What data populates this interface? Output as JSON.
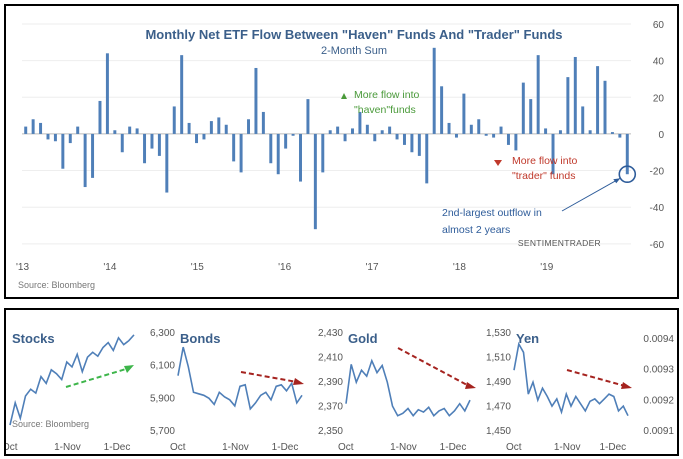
{
  "chart_data": [
    {
      "type": "bar",
      "title": "Monthly Net ETF Flow Between \"Haven\" Funds And \"Trader\" Funds",
      "subtitle": "2-Month Sum",
      "ylim": [
        -65,
        60
      ],
      "yticks": [
        60,
        40,
        20,
        0,
        -20,
        -40,
        -60
      ],
      "xticks": [
        "'13",
        "'14",
        "'15",
        "'16",
        "'17",
        "'18",
        "'19"
      ],
      "x_start": 2013.0,
      "x_end": 2019.97,
      "color": "#4f7fb8",
      "values": [
        4,
        8,
        6,
        -3,
        -4,
        -19,
        -5,
        4,
        -29,
        -24,
        18,
        44,
        2,
        -10,
        4,
        3,
        -16,
        -8,
        -12,
        -32,
        15,
        43,
        6,
        -5,
        -3,
        7,
        9,
        5,
        -15,
        -21,
        8,
        36,
        12,
        -16,
        -22,
        -8,
        -1,
        -26,
        19,
        -52,
        -21,
        2,
        4,
        -4,
        3,
        12,
        5,
        -4,
        2,
        4,
        -3,
        -6,
        -10,
        -12,
        -27,
        47,
        26,
        6,
        -2,
        22,
        5,
        8,
        -1,
        -2,
        4,
        -6,
        -9,
        28,
        19,
        43,
        3,
        -22,
        2,
        31,
        42,
        15,
        2,
        37,
        29,
        1,
        -2,
        -22
      ],
      "annotations": [
        {
          "text_lines": [
            "More flow into",
            "\"haven\"funds"
          ],
          "marker": "up-triangle",
          "color": "#4a9a3a"
        },
        {
          "text_lines": [
            "More flow into",
            "\"trader\" funds"
          ],
          "marker": "down-triangle",
          "color": "#c0392b"
        },
        {
          "text_lines": [
            "2nd-largest outflow in",
            "almost 2 years"
          ],
          "color": "#2e5c9a"
        }
      ],
      "source": "Source: Bloomberg",
      "brand": "SENTIMENTRADER"
    },
    {
      "type": "line",
      "title": "Stocks",
      "x_tick_labels": [
        "Oct",
        "1-Nov",
        "1-Dec"
      ],
      "trend": "up",
      "trend_color": "#3db54a",
      "values": [
        0.05,
        0.28,
        0.12,
        0.35,
        0.42,
        0.38,
        0.55,
        0.48,
        0.62,
        0.58,
        0.52,
        0.7,
        0.65,
        0.78,
        0.6,
        0.75,
        0.8,
        0.76,
        0.85,
        0.9,
        0.82,
        0.95,
        0.88,
        0.92,
        0.98
      ],
      "source": "Source: Bloomberg"
    },
    {
      "type": "line",
      "title": "Bonds",
      "yticks": [
        "6,300",
        "6,100",
        "5,900",
        "5,700"
      ],
      "ylim": [
        5700,
        6350
      ],
      "x_tick_labels": [
        "Oct",
        "1-Nov",
        "1-Dec"
      ],
      "trend": "down",
      "trend_color": "#a5231f",
      "values": [
        6060,
        6250,
        6120,
        5950,
        5940,
        5930,
        5910,
        5870,
        5950,
        5920,
        5900,
        5860,
        5990,
        6000,
        5840,
        5880,
        5930,
        5950,
        5900,
        5990,
        6000,
        5960,
        6010,
        5880,
        5930
      ]
    },
    {
      "type": "line",
      "title": "Gold",
      "yticks": [
        "2,430",
        "2,410",
        "2,390",
        "2,370",
        "2,350"
      ],
      "ylim": [
        2350,
        2432
      ],
      "x_tick_labels": [
        "Oct",
        "1-Nov",
        "1-Dec"
      ],
      "trend": "down",
      "trend_color": "#a5231f",
      "values": [
        2372,
        2405,
        2390,
        2400,
        2395,
        2408,
        2398,
        2404,
        2390,
        2370,
        2362,
        2364,
        2368,
        2362,
        2367,
        2365,
        2369,
        2362,
        2366,
        2368,
        2362,
        2366,
        2372,
        2366,
        2375
      ]
    },
    {
      "type": "line",
      "title": "Yen",
      "yticks_left": [
        "1,530",
        "1,510",
        "1,490",
        "1,470",
        "1,450"
      ],
      "yticks_right": [
        "0.0094",
        "0.0093",
        "0.0092",
        "0.0091"
      ],
      "ylim": [
        1450,
        1532
      ],
      "x_tick_labels": [
        "Oct",
        "1-Nov",
        "1-Dec"
      ],
      "trend": "down",
      "trend_color": "#a5231f",
      "values": [
        1500,
        1522,
        1515,
        1480,
        1490,
        1475,
        1485,
        1478,
        1470,
        1476,
        1465,
        1480,
        1470,
        1478,
        1472,
        1466,
        1474,
        1476,
        1472,
        1476,
        1480,
        1478,
        1466,
        1470,
        1462
      ]
    }
  ]
}
